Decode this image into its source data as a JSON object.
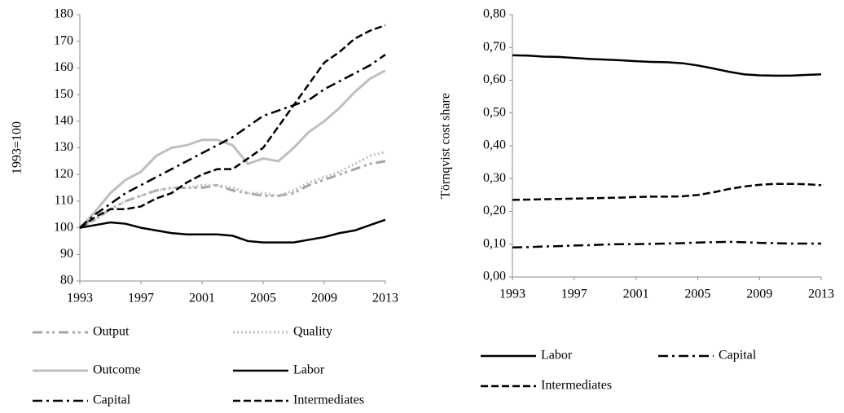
{
  "chart_data": [
    {
      "type": "line",
      "y_label": "1993=100",
      "x": [
        1993,
        1994,
        1995,
        1996,
        1997,
        1998,
        1999,
        2000,
        2001,
        2002,
        2003,
        2004,
        2005,
        2006,
        2007,
        2008,
        2009,
        2010,
        2011,
        2012,
        2013
      ],
      "xlim": [
        1993,
        2013
      ],
      "xticks": [
        1993,
        1997,
        2001,
        2005,
        2009,
        2013
      ],
      "ylim": [
        80,
        180
      ],
      "yticks": [
        80,
        90,
        100,
        110,
        120,
        130,
        140,
        150,
        160,
        170,
        180
      ],
      "series": [
        {
          "name": "Output",
          "color": "#a6a6a6",
          "style": "dash-dot-dot",
          "values": [
            100,
            103,
            107,
            110,
            112,
            114,
            115,
            115,
            115,
            116,
            114,
            113,
            112,
            112,
            113,
            116,
            118,
            120,
            122,
            124,
            125
          ]
        },
        {
          "name": "Quality",
          "color": "#bfbfbf",
          "style": "dot",
          "values": [
            100,
            103,
            107,
            110,
            112,
            114,
            115,
            115,
            116,
            116,
            115,
            113,
            113,
            112,
            114,
            117,
            119,
            121,
            124,
            127,
            128.5
          ]
        },
        {
          "name": "Outcome",
          "color": "#bfbfbf",
          "style": "solid",
          "values": [
            100,
            106,
            113,
            118,
            121,
            127,
            130,
            131,
            133,
            133,
            131,
            124,
            126,
            125,
            130,
            136,
            140,
            145,
            151,
            156,
            159
          ]
        },
        {
          "name": "Labor",
          "color": "#000000",
          "style": "solid",
          "values": [
            100,
            101,
            102,
            101.5,
            100,
            99,
            98,
            97.5,
            97.5,
            97.5,
            97,
            95,
            94.5,
            94.5,
            94.5,
            95.5,
            96.5,
            98,
            99,
            101,
            103
          ]
        },
        {
          "name": "Capital",
          "color": "#000000",
          "style": "dash-dot",
          "values": [
            100,
            105,
            109,
            113,
            116,
            119,
            122,
            125,
            128,
            131,
            134,
            138,
            142,
            144,
            146,
            148,
            152,
            155,
            158,
            161,
            165
          ]
        },
        {
          "name": "Intermediates",
          "color": "#000000",
          "style": "dash",
          "values": [
            100,
            104,
            107,
            107,
            108,
            111,
            113,
            117,
            120,
            122,
            122,
            126,
            130,
            138,
            146,
            154,
            162,
            166,
            171,
            174,
            176
          ]
        }
      ]
    },
    {
      "type": "line",
      "y_label": "Törnqvist cost share",
      "x": [
        1993,
        1994,
        1995,
        1996,
        1997,
        1998,
        1999,
        2000,
        2001,
        2002,
        2003,
        2004,
        2005,
        2006,
        2007,
        2008,
        2009,
        2010,
        2011,
        2012,
        2013
      ],
      "xlim": [
        1993,
        2013
      ],
      "xticks": [
        1993,
        1997,
        2001,
        2005,
        2009,
        2013
      ],
      "ylim": [
        0,
        0.8
      ],
      "yticks": [
        {
          "value": 0,
          "label": "0,00"
        },
        {
          "value": 0.1,
          "label": "0,10"
        },
        {
          "value": 0.2,
          "label": "0,20"
        },
        {
          "value": 0.3,
          "label": "0,30"
        },
        {
          "value": 0.4,
          "label": "0,40"
        },
        {
          "value": 0.5,
          "label": "0,50"
        },
        {
          "value": 0.6,
          "label": "0,60"
        },
        {
          "value": 0.7,
          "label": "0,70"
        },
        {
          "value": 0.8,
          "label": "0,80"
        }
      ],
      "series": [
        {
          "name": "Labor",
          "color": "#000000",
          "style": "solid",
          "values": [
            0.676,
            0.675,
            0.672,
            0.671,
            0.668,
            0.665,
            0.663,
            0.661,
            0.658,
            0.656,
            0.655,
            0.652,
            0.645,
            0.636,
            0.626,
            0.618,
            0.615,
            0.614,
            0.614,
            0.616,
            0.618
          ]
        },
        {
          "name": "Capital",
          "color": "#000000",
          "style": "dash-dot",
          "values": [
            0.09,
            0.091,
            0.093,
            0.094,
            0.096,
            0.097,
            0.099,
            0.1,
            0.1,
            0.101,
            0.102,
            0.103,
            0.105,
            0.106,
            0.107,
            0.106,
            0.104,
            0.103,
            0.102,
            0.102,
            0.102
          ]
        },
        {
          "name": "Intermediates",
          "color": "#000000",
          "style": "dash",
          "values": [
            0.235,
            0.236,
            0.237,
            0.238,
            0.239,
            0.24,
            0.241,
            0.242,
            0.244,
            0.245,
            0.245,
            0.246,
            0.25,
            0.258,
            0.268,
            0.276,
            0.281,
            0.284,
            0.284,
            0.283,
            0.28
          ]
        }
      ]
    }
  ]
}
